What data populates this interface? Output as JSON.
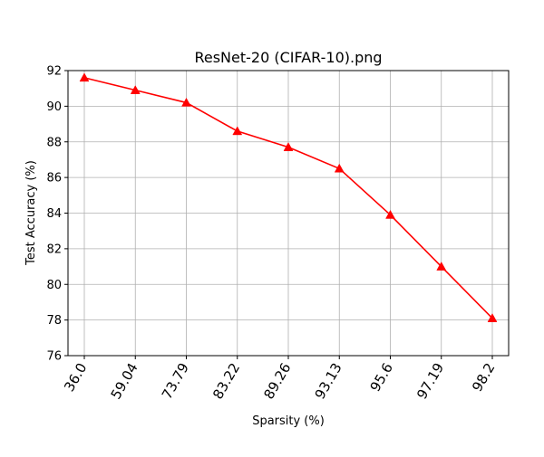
{
  "chart_data": {
    "type": "line",
    "title": "ResNet-20 (CIFAR-10).png",
    "xlabel": "Sparsity (%)",
    "ylabel": "Test Accuracy (%)",
    "categories": [
      "36.0",
      "59.04",
      "73.79",
      "83.22",
      "89.26",
      "93.13",
      "95.6",
      "97.19",
      "98.2"
    ],
    "series": [
      {
        "values": [
          91.6,
          90.9,
          90.2,
          88.6,
          87.7,
          86.5,
          83.9,
          81.0,
          78.1
        ],
        "color": "#ff0000",
        "marker": "triangle-up"
      }
    ],
    "ylim": [
      76,
      92
    ],
    "yticks": [
      "76",
      "78",
      "80",
      "82",
      "84",
      "86",
      "88",
      "90",
      "92"
    ],
    "grid": true,
    "x_tick_rotation": "60deg"
  }
}
